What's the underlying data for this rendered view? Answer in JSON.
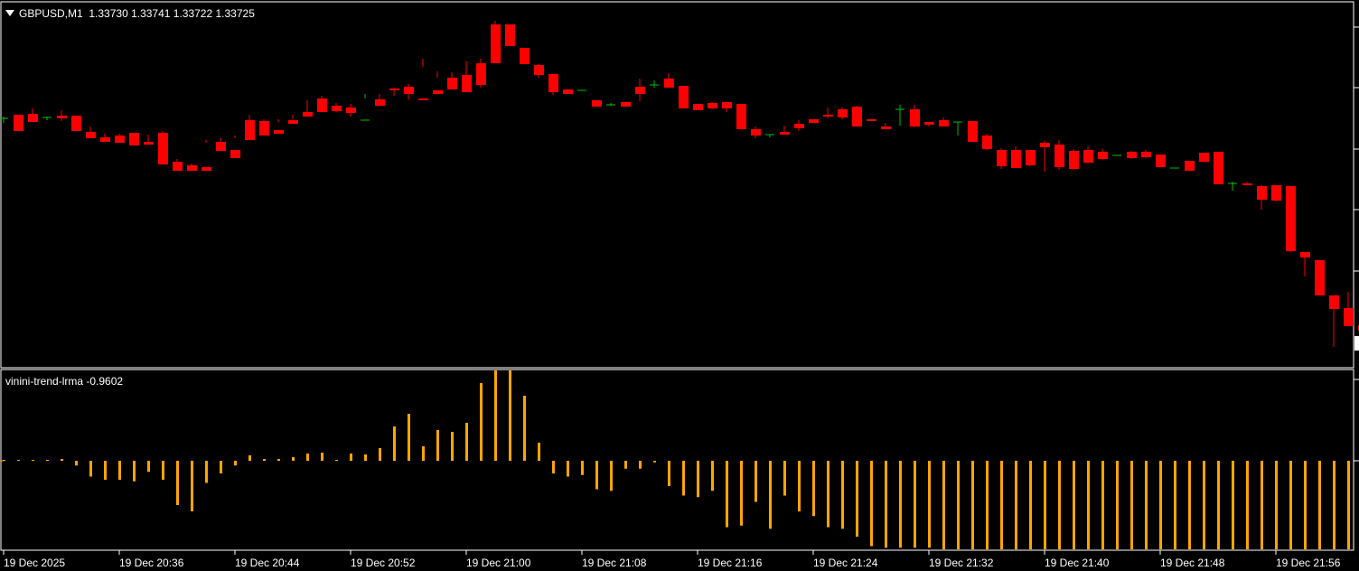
{
  "header": {
    "symbol": "GBPUSD,M1",
    "ohlc": "1.33730 1.33741 1.33722 1.33725"
  },
  "indicator": {
    "label": "vinini-trend-lrma -0.9602",
    "color": "#FFA500"
  },
  "colors": {
    "bull": "#FFFFFF",
    "bear": "#FF0000",
    "doji": "#00C000",
    "background": "#000000",
    "frame": "#FFFFFF"
  },
  "chart_data": [
    {
      "type": "candlestick",
      "symbol": "GBPUSD",
      "timeframe": "M1",
      "x_ticks": [
        "19 Dec 2025",
        "19 Dec 20:36",
        "19 Dec 20:44",
        "19 Dec 20:52",
        "19 Dec 21:00",
        "19 Dec 21:08",
        "19 Dec 21:16",
        "19 Dec 21:24",
        "19 Dec 21:32",
        "19 Dec 21:40",
        "19 Dec 21:48",
        "19 Dec 21:56"
      ],
      "ylim": [
        0,
        404
      ],
      "candles": [
        [
          131,
          129,
          132,
          136
        ],
        [
          127,
          127,
          145,
          130
        ],
        [
          126,
          120,
          135,
          131
        ],
        [
          130,
          129,
          131,
          133
        ],
        [
          128,
          122,
          131,
          134
        ],
        [
          128,
          128,
          145,
          144
        ],
        [
          146,
          140,
          153,
          151
        ],
        [
          152,
          148,
          157,
          153
        ],
        [
          150,
          148,
          158,
          153
        ],
        [
          147,
          147,
          161,
          159
        ],
        [
          157,
          149,
          160,
          159
        ],
        [
          147,
          145,
          182,
          178
        ],
        [
          179,
          176,
          189,
          185
        ],
        [
          183,
          181,
          189,
          187
        ],
        [
          185,
          155,
          189,
          158
        ],
        [
          157,
          152,
          167,
          164
        ],
        [
          166,
          150,
          175,
          153
        ],
        [
          133,
          127,
          155,
          152
        ],
        [
          134,
          132,
          150,
          145
        ],
        [
          144,
          132,
          148,
          135
        ],
        [
          133,
          127,
          137,
          132
        ],
        [
          124,
          111,
          129,
          127
        ],
        [
          109,
          106,
          124,
          119
        ],
        [
          117,
          114,
          123,
          124
        ],
        [
          119,
          115,
          125,
          129
        ],
        [
          133,
          104,
          134,
          109
        ],
        [
          110,
          104,
          117,
          114
        ],
        [
          98,
          97,
          100,
          106
        ],
        [
          96,
          93,
          104,
          110
        ],
        [
          109,
          65,
          111,
          74
        ],
        [
          100,
          79,
          104,
          86
        ],
        [
          86,
          80,
          99,
          88
        ],
        [
          83,
          68,
          102,
          101
        ],
        [
          70,
          65,
          94,
          97
        ],
        [
          27,
          23,
          70,
          69
        ],
        [
          27,
          27,
          51,
          51
        ],
        [
          53,
          53,
          71,
          70
        ],
        [
          72,
          71,
          83,
          86
        ],
        [
          82,
          82,
          102,
          105
        ],
        [
          99,
          100,
          104,
          102
        ],
        [
          100,
          100,
          101,
          100
        ],
        [
          111,
          111,
          118,
          118
        ],
        [
          116,
          114,
          117,
          117
        ],
        [
          113,
          113,
          118,
          118
        ],
        [
          96,
          87,
          104,
          112
        ],
        [
          94,
          89,
          95,
          97
        ],
        [
          87,
          81,
          97,
          96
        ],
        [
          95,
          96,
          120,
          120
        ],
        [
          115,
          115,
          122,
          121
        ],
        [
          114,
          113,
          120,
          121
        ],
        [
          113,
          113,
          120,
          124
        ],
        [
          115,
          115,
          143,
          141
        ],
        [
          143,
          140,
          150,
          153
        ],
        [
          149,
          149,
          150,
          152
        ],
        [
          146,
          139,
          149,
          148
        ],
        [
          137,
          133,
          142,
          145
        ],
        [
          132,
          132,
          136,
          135
        ],
        [
          127,
          119,
          129,
          131
        ],
        [
          121,
          119,
          130,
          132
        ],
        [
          118,
          117,
          140,
          139
        ],
        [
          132,
          132,
          134,
          132
        ],
        [
          140,
          136,
          143,
          141
        ],
        [
          121,
          116,
          121,
          139
        ],
        [
          121,
          116,
          140,
          141
        ],
        [
          135,
          135,
          138,
          140
        ],
        [
          133,
          130,
          140,
          136
        ],
        [
          135,
          135,
          136,
          150
        ],
        [
          134,
          134,
          157,
          155
        ],
        [
          150,
          148,
          165,
          166
        ],
        [
          166,
          164,
          184,
          187
        ],
        [
          166,
          162,
          186,
          186
        ],
        [
          166,
          166,
          183,
          184
        ],
        [
          158,
          156,
          163,
          190
        ],
        [
          160,
          155,
          185,
          188
        ],
        [
          167,
          165,
          187,
          188
        ],
        [
          166,
          162,
          180,
          181
        ],
        [
          168,
          165,
          176,
          177
        ],
        [
          172,
          172,
          172,
          172
        ],
        [
          168,
          167,
          175,
          176
        ],
        [
          168,
          166,
          174,
          175
        ],
        [
          171,
          173,
          185,
          185
        ],
        [
          186,
          186,
          186,
          186
        ],
        [
          178,
          178,
          189,
          188
        ],
        [
          169,
          167,
          179,
          167
        ],
        [
          168,
          168,
          204,
          204
        ],
        [
          203,
          201,
          203,
          211
        ],
        [
          203,
          201,
          205,
          203
        ],
        [
          206,
          205,
          221,
          232
        ],
        [
          205,
          205,
          222,
          223
        ],
        [
          206,
          206,
          278,
          279
        ],
        [
          279,
          279,
          285,
          306
        ],
        [
          288,
          288,
          327,
          326
        ],
        [
          327,
          327,
          342,
          384
        ],
        [
          341,
          341,
          361,
          323
        ],
        [
          360,
          358,
          366,
          358
        ],
        [
          370,
          369,
          376,
          380
        ],
        [
          373,
          373,
          381,
          386
        ]
      ],
      "indicator_label": "vinini-trend-lrma -0.9602",
      "indicator_values": [
        1,
        1,
        1,
        1,
        2,
        -3,
        -10,
        -12,
        -12,
        -13,
        -7,
        -12,
        -28,
        -32,
        -14,
        -8,
        -3,
        6,
        2,
        2,
        4,
        8,
        9,
        1,
        8,
        7,
        14,
        38,
        52,
        16,
        34,
        32,
        42,
        86,
        100,
        100,
        72,
        20,
        -8,
        -10,
        -9,
        -18,
        -19,
        -5,
        -5,
        -1,
        -16,
        -22,
        -23,
        -19,
        -42,
        -41,
        -26,
        -43,
        -22,
        -32,
        -35,
        -42,
        -43,
        -48,
        -54,
        -55,
        -55,
        -55,
        -55,
        -56,
        -56,
        -56,
        -56,
        -56,
        -56,
        -56,
        -56,
        -56,
        -56,
        -56,
        -56,
        -56,
        -56,
        -56,
        -56,
        -56,
        -56,
        -56,
        -56,
        -56,
        -56,
        -56,
        -56,
        -56,
        -56,
        -56,
        -56,
        -56,
        -56,
        -56,
        -56
      ]
    }
  ]
}
